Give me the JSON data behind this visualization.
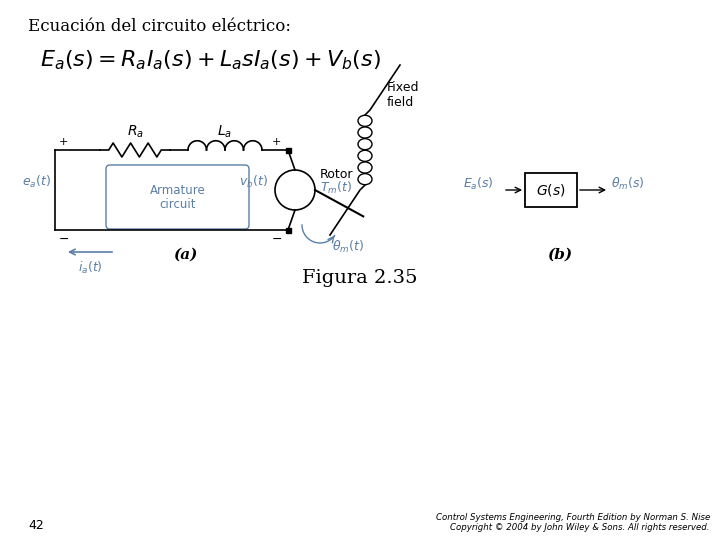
{
  "title": "Ecuación del circuito eléctrico:",
  "equation": "$E_a(s) = R_a I_a(s) + L_a s I_a(s) + V_b(s)$",
  "figura_label": "Figura 2.35",
  "page_number": "42",
  "copyright_line1": "Control Systems Engineering, Fourth Edition by Norman S. Nise",
  "copyright_line2": "Copyright © 2004 by John Wiley & Sons. All rights reserved.",
  "bg_color": "#ffffff",
  "text_color": "#000000",
  "blue_color": "#5b7fa6",
  "label_a": "(a)",
  "label_b": "(b)",
  "fixed_field": "Fixed\nfield",
  "rotor": "Rotor",
  "armature_line1": "Armature",
  "armature_line2": "circuit"
}
